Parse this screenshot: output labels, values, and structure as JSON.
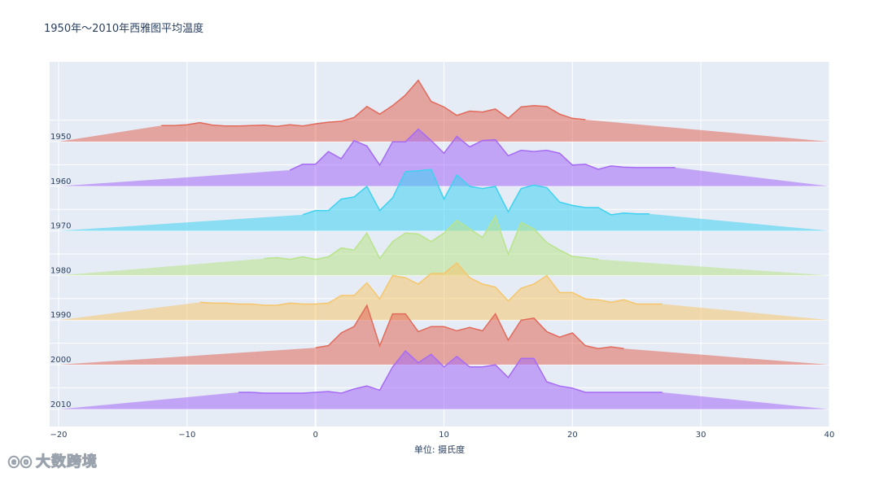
{
  "chart_data": {
    "type": "area",
    "subtype": "ridgeline",
    "title": "1950年～2010年西雅图平均温度",
    "xlabel": "单位: 摄氏度",
    "xlim": [
      -20,
      40
    ],
    "x_ticks": [
      -20,
      -10,
      0,
      10,
      20,
      30,
      40
    ],
    "grid": true,
    "legend": "none",
    "series": [
      {
        "name": "1950",
        "color": "#e26a5a",
        "x": [
          -12,
          -11,
          -10,
          -9,
          -8,
          -7,
          -6,
          -5,
          -4,
          -3,
          -2,
          -1,
          0,
          1,
          2,
          3,
          4,
          5,
          6,
          7,
          8,
          9,
          10,
          11,
          12,
          13,
          14,
          15,
          16,
          17,
          18,
          19,
          20,
          21
        ],
        "y": [
          0.38,
          0.38,
          0.4,
          0.45,
          0.39,
          0.37,
          0.37,
          0.38,
          0.39,
          0.36,
          0.4,
          0.37,
          0.42,
          0.46,
          0.48,
          0.57,
          0.83,
          0.65,
          0.85,
          1.1,
          1.45,
          0.95,
          0.82,
          0.62,
          0.72,
          0.7,
          0.77,
          0.55,
          0.82,
          0.85,
          0.83,
          0.65,
          0.55,
          0.52
        ]
      },
      {
        "name": "1960",
        "color": "#a66af5",
        "x": [
          -2,
          -1,
          0,
          1,
          2,
          3,
          4,
          5,
          6,
          7,
          8,
          9,
          10,
          11,
          12,
          13,
          14,
          15,
          16,
          17,
          18,
          19,
          20,
          21,
          22,
          23,
          24,
          25,
          26,
          27,
          28
        ],
        "y": [
          0.38,
          0.52,
          0.52,
          0.82,
          0.65,
          1.08,
          0.95,
          0.5,
          1.05,
          1.05,
          1.35,
          1.08,
          0.78,
          1.18,
          0.93,
          1.08,
          1.1,
          0.72,
          0.85,
          0.82,
          0.85,
          0.78,
          0.5,
          0.52,
          0.4,
          0.48,
          0.45,
          0.44,
          0.44,
          0.44,
          0.44
        ]
      },
      {
        "name": "1970",
        "color": "#3fd2f0",
        "x": [
          -1,
          0,
          1,
          2,
          3,
          4,
          5,
          6,
          7,
          8,
          9,
          10,
          11,
          12,
          13,
          14,
          15,
          16,
          17,
          18,
          19,
          20,
          21,
          22,
          23,
          24,
          25,
          26
        ],
        "y": [
          0.38,
          0.48,
          0.48,
          0.75,
          0.8,
          1.05,
          0.48,
          0.78,
          1.4,
          1.42,
          1.45,
          0.75,
          1.32,
          1.05,
          1.0,
          1.05,
          0.45,
          1.0,
          1.08,
          1.02,
          0.68,
          0.6,
          0.55,
          0.55,
          0.38,
          0.42,
          0.4,
          0.4
        ]
      },
      {
        "name": "1980",
        "color": "#b9e48b",
        "x": [
          -4,
          -3,
          -2,
          -1,
          0,
          1,
          2,
          3,
          4,
          5,
          6,
          7,
          8,
          9,
          10,
          11,
          12,
          13,
          14,
          15,
          16,
          17,
          18,
          19,
          20,
          21,
          22
        ],
        "y": [
          0.4,
          0.42,
          0.38,
          0.44,
          0.38,
          0.44,
          0.65,
          0.6,
          1.0,
          0.4,
          0.8,
          1.0,
          0.98,
          0.8,
          1.0,
          1.3,
          1.1,
          0.9,
          1.4,
          0.5,
          1.25,
          1.1,
          0.78,
          0.6,
          0.45,
          0.42,
          0.38
        ]
      },
      {
        "name": "1990",
        "color": "#f6c66b",
        "x": [
          -9,
          -8,
          -7,
          -6,
          -5,
          -4,
          -3,
          -2,
          -1,
          0,
          1,
          2,
          3,
          4,
          5,
          6,
          7,
          8,
          9,
          10,
          11,
          12,
          13,
          14,
          15,
          16,
          17,
          18,
          19,
          20,
          21,
          22,
          23,
          24,
          25,
          26,
          27
        ],
        "y": [
          0.42,
          0.4,
          0.4,
          0.38,
          0.38,
          0.35,
          0.35,
          0.4,
          0.38,
          0.38,
          0.4,
          0.58,
          0.58,
          0.88,
          0.5,
          1.05,
          1.0,
          0.85,
          1.1,
          1.1,
          1.35,
          1.0,
          0.85,
          0.78,
          0.45,
          0.75,
          0.85,
          1.05,
          0.65,
          0.65,
          0.5,
          0.48,
          0.42,
          0.48,
          0.38,
          0.38,
          0.38
        ]
      },
      {
        "name": "2000",
        "color": "#e26a5a",
        "x": [
          0,
          1,
          2,
          3,
          4,
          5,
          6,
          7,
          8,
          9,
          10,
          11,
          12,
          13,
          14,
          15,
          16,
          17,
          18,
          19,
          20,
          21,
          22,
          23,
          24
        ],
        "y": [
          0.4,
          0.45,
          0.75,
          0.9,
          1.4,
          0.45,
          1.2,
          1.2,
          0.78,
          0.9,
          0.9,
          0.8,
          0.88,
          0.8,
          1.2,
          0.58,
          1.05,
          1.1,
          0.78,
          0.65,
          0.75,
          0.45,
          0.38,
          0.42,
          0.38
        ]
      },
      {
        "name": "2010",
        "color": "#a66af5",
        "x": [
          -6,
          -5,
          -4,
          -3,
          -2,
          -1,
          0,
          1,
          2,
          3,
          4,
          5,
          6,
          7,
          8,
          9,
          10,
          11,
          12,
          13,
          14,
          15,
          16,
          17,
          18,
          19,
          20,
          21,
          22,
          23,
          24,
          25,
          26,
          27
        ],
        "y": [
          0.4,
          0.4,
          0.38,
          0.38,
          0.38,
          0.38,
          0.4,
          0.42,
          0.38,
          0.48,
          0.55,
          0.45,
          1.0,
          1.38,
          1.1,
          1.3,
          1.0,
          1.25,
          1.0,
          1.0,
          1.05,
          0.75,
          1.2,
          1.2,
          0.65,
          0.55,
          0.5,
          0.4,
          0.4,
          0.4,
          0.4,
          0.4,
          0.4,
          0.4
        ]
      }
    ]
  },
  "watermark": {
    "text": "大数跨境",
    "logo": "ⓔⓞ"
  }
}
